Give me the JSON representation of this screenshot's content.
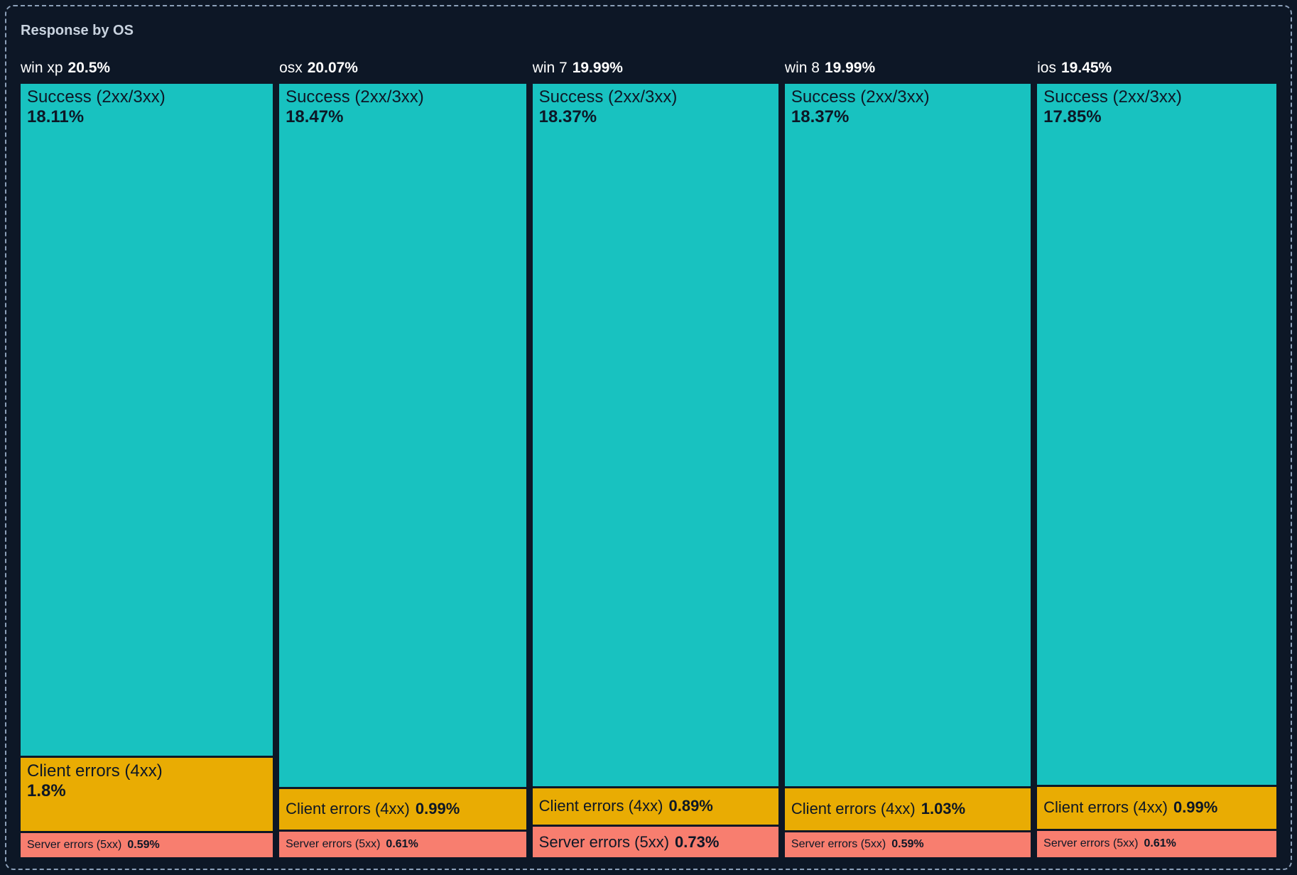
{
  "chart_data": {
    "type": "treemap",
    "title": "Response by OS",
    "unit": "%",
    "colors": {
      "background": "#0d1726",
      "panel_border": "#8da0b9",
      "title_text": "#c9d3df",
      "header_text": "#ffffff",
      "segment_text": "#0d1726",
      "success": "#18c2c0",
      "client": "#e9ac03",
      "server": "#f87e6f"
    },
    "columns": [
      {
        "os": "win xp",
        "total": 20.5,
        "total_label": "20.5%",
        "segments": [
          {
            "key": "success",
            "name": "Success (2xx/3xx)",
            "value": 18.11,
            "pct_label": "18.11%",
            "layout": "stacked",
            "size": "lg"
          },
          {
            "key": "client",
            "name": "Client errors (4xx)",
            "value": 1.8,
            "pct_label": "1.8%",
            "layout": "stacked",
            "size": "lg"
          },
          {
            "key": "server",
            "name": "Server errors (5xx)",
            "value": 0.59,
            "pct_label": "0.59%",
            "layout": "inline",
            "size": "sm"
          }
        ]
      },
      {
        "os": "osx",
        "total": 20.07,
        "total_label": "20.07%",
        "segments": [
          {
            "key": "success",
            "name": "Success (2xx/3xx)",
            "value": 18.47,
            "pct_label": "18.47%",
            "layout": "stacked",
            "size": "lg"
          },
          {
            "key": "client",
            "name": "Client errors (4xx)",
            "value": 0.99,
            "pct_label": "0.99%",
            "layout": "inline",
            "size": "md"
          },
          {
            "key": "server",
            "name": "Server errors (5xx)",
            "value": 0.61,
            "pct_label": "0.61%",
            "layout": "inline",
            "size": "sm"
          }
        ]
      },
      {
        "os": "win 7",
        "total": 19.99,
        "total_label": "19.99%",
        "segments": [
          {
            "key": "success",
            "name": "Success (2xx/3xx)",
            "value": 18.37,
            "pct_label": "18.37%",
            "layout": "stacked",
            "size": "lg"
          },
          {
            "key": "client",
            "name": "Client errors (4xx)",
            "value": 0.89,
            "pct_label": "0.89%",
            "layout": "inline",
            "size": "md"
          },
          {
            "key": "server",
            "name": "Server errors (5xx)",
            "value": 0.73,
            "pct_label": "0.73%",
            "layout": "inline",
            "size": "md"
          }
        ]
      },
      {
        "os": "win 8",
        "total": 19.99,
        "total_label": "19.99%",
        "segments": [
          {
            "key": "success",
            "name": "Success (2xx/3xx)",
            "value": 18.37,
            "pct_label": "18.37%",
            "layout": "stacked",
            "size": "lg"
          },
          {
            "key": "client",
            "name": "Client errors (4xx)",
            "value": 1.03,
            "pct_label": "1.03%",
            "layout": "inline",
            "size": "md"
          },
          {
            "key": "server",
            "name": "Server errors (5xx)",
            "value": 0.59,
            "pct_label": "0.59%",
            "layout": "inline",
            "size": "sm"
          }
        ]
      },
      {
        "os": "ios",
        "total": 19.45,
        "total_label": "19.45%",
        "segments": [
          {
            "key": "success",
            "name": "Success (2xx/3xx)",
            "value": 17.85,
            "pct_label": "17.85%",
            "layout": "stacked",
            "size": "lg"
          },
          {
            "key": "client",
            "name": "Client errors (4xx)",
            "value": 0.99,
            "pct_label": "0.99%",
            "layout": "inline",
            "size": "md"
          },
          {
            "key": "server",
            "name": "Server errors (5xx)",
            "value": 0.61,
            "pct_label": "0.61%",
            "layout": "inline",
            "size": "sm"
          }
        ]
      }
    ]
  }
}
